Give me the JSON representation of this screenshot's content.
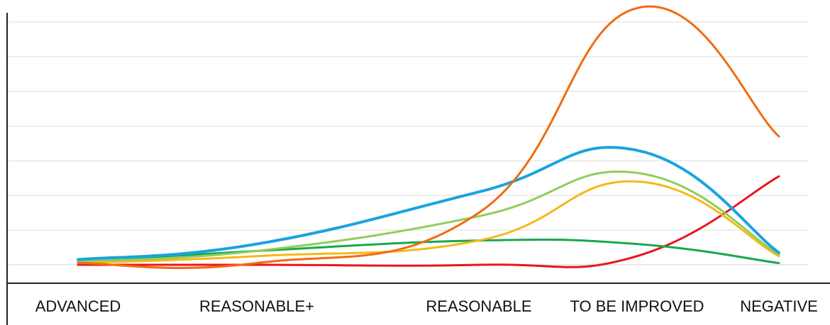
{
  "chart_data": {
    "type": "line",
    "title": "",
    "xlabel": "",
    "ylabel": "",
    "categories": [
      "ADVANCED",
      "REASONABLE+",
      "REASONABLE",
      "TO BE IMPROVED",
      "NEGATIVE"
    ],
    "ylim": [
      0,
      7
    ],
    "y_ticks_shown": false,
    "grid": "horizontal",
    "legend": "none",
    "smooth": true,
    "series": [
      {
        "color": "#f26b0f",
        "values": [
          0.05,
          0.05,
          1.5,
          7.4,
          3.7
        ]
      },
      {
        "color": "#1aa3e0",
        "values": [
          0.15,
          0.6,
          2.1,
          3.3,
          0.35
        ]
      },
      {
        "color": "#8fce5a",
        "values": [
          0.1,
          0.4,
          1.4,
          2.65,
          0.3
        ]
      },
      {
        "color": "#f7b718",
        "values": [
          0.05,
          0.25,
          0.7,
          2.4,
          0.25
        ]
      },
      {
        "color": "#17a84a",
        "values": [
          0.1,
          0.4,
          0.7,
          0.6,
          0.05
        ]
      },
      {
        "color": "#e8161d",
        "values": [
          0.0,
          0.0,
          0.0,
          0.25,
          2.55
        ]
      }
    ]
  }
}
